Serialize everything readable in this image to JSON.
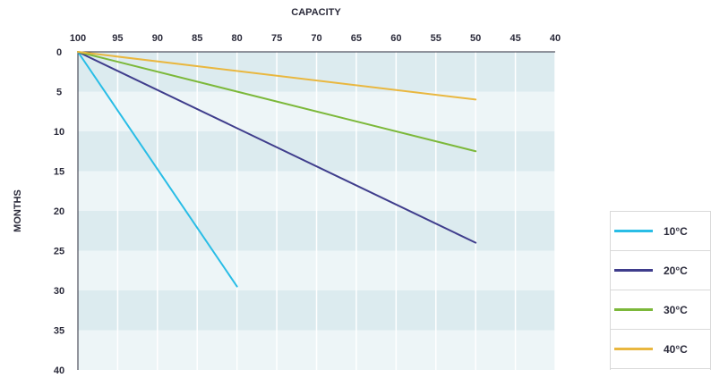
{
  "chart_data": {
    "type": "line",
    "xlabel": "CAPACITY",
    "ylabel": "MONTHS",
    "x_ticks": [
      100,
      95,
      90,
      85,
      80,
      75,
      70,
      65,
      60,
      55,
      50,
      45,
      40
    ],
    "y_ticks": [
      0,
      5,
      10,
      15,
      20,
      25,
      30,
      35,
      40
    ],
    "xlim": [
      100,
      40
    ],
    "ylim": [
      0,
      40
    ],
    "x_axis_position": "top",
    "y_axis_inverted": true,
    "grid": true,
    "legend_position": "bottom-right",
    "series": [
      {
        "name": "10°C",
        "color": "#29bde6",
        "points": [
          [
            100,
            0
          ],
          [
            80,
            29.5
          ]
        ]
      },
      {
        "name": "20°C",
        "color": "#3f3d8c",
        "points": [
          [
            100,
            0
          ],
          [
            50,
            24
          ]
        ]
      },
      {
        "name": "30°C",
        "color": "#7cb83a",
        "points": [
          [
            100,
            0
          ],
          [
            50,
            12.5
          ]
        ]
      },
      {
        "name": "40°C",
        "color": "#e9b73f",
        "points": [
          [
            100,
            0
          ],
          [
            50,
            6
          ]
        ]
      }
    ]
  },
  "colors": {
    "band_dark": "#dcebef",
    "band_light": "#edf5f7",
    "grid": "#ffffff",
    "axis": "#2a2a3a"
  }
}
